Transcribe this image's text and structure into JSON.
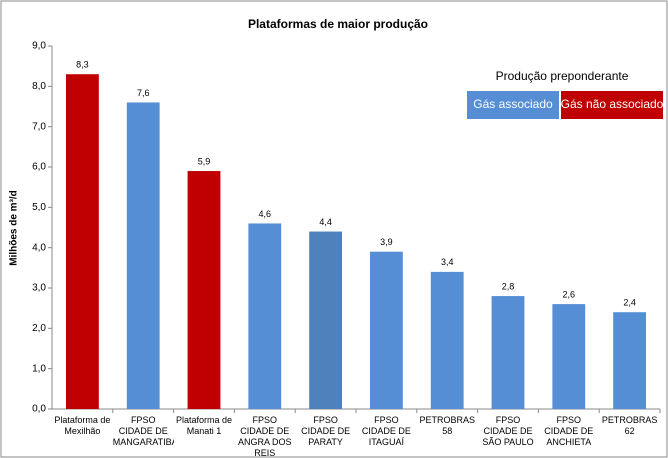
{
  "chart_data": {
    "type": "bar",
    "title": "Plataformas de maior produção",
    "ylabel": "Milhões de m³/d",
    "categories": [
      "Plataforma de Mexilhão",
      "FPSO CIDADE DE MANGARATIBA",
      "Plataforma de Manati 1",
      "FPSO CIDADE DE ANGRA DOS REIS",
      "FPSO CIDADE DE PARATY",
      "FPSO CIDADE DE ITAGUAÍ",
      "PETROBRAS 58",
      "FPSO CIDADE DE SÃO PAULO",
      "FPSO CIDADE DE ANCHIETA",
      "PETROBRAS 62"
    ],
    "values": [
      8.3,
      7.6,
      5.9,
      4.6,
      4.4,
      3.9,
      3.4,
      2.8,
      2.6,
      2.4
    ],
    "value_labels": [
      "8,3",
      "7,6",
      "5,9",
      "4,6",
      "4,4",
      "3,9",
      "3,4",
      "2,8",
      "2,6",
      "2,4"
    ],
    "colors": [
      "#c00000",
      "#558ed5",
      "#c00000",
      "#558ed5",
      "#4f81bd",
      "#558ed5",
      "#558ed5",
      "#558ed5",
      "#558ed5",
      "#558ed5"
    ],
    "ylim": [
      0,
      9
    ],
    "yticks": [
      {
        "value": 0,
        "label": "0,0"
      },
      {
        "value": 1,
        "label": "1,0"
      },
      {
        "value": 2,
        "label": "2,0"
      },
      {
        "value": 3,
        "label": "3,0"
      },
      {
        "value": 4,
        "label": "4,0"
      },
      {
        "value": 5,
        "label": "5,0"
      },
      {
        "value": 6,
        "label": "6,0"
      },
      {
        "value": 7,
        "label": "7,0"
      },
      {
        "value": 8,
        "label": "8,0"
      },
      {
        "value": 9,
        "label": "9,0"
      }
    ],
    "grid": false,
    "legend": {
      "title": "Produção preponderante",
      "items": [
        {
          "label": "Gás associado",
          "color": "#558ed5"
        },
        {
          "label": "Gás não associado",
          "color": "#c00000"
        }
      ]
    }
  }
}
